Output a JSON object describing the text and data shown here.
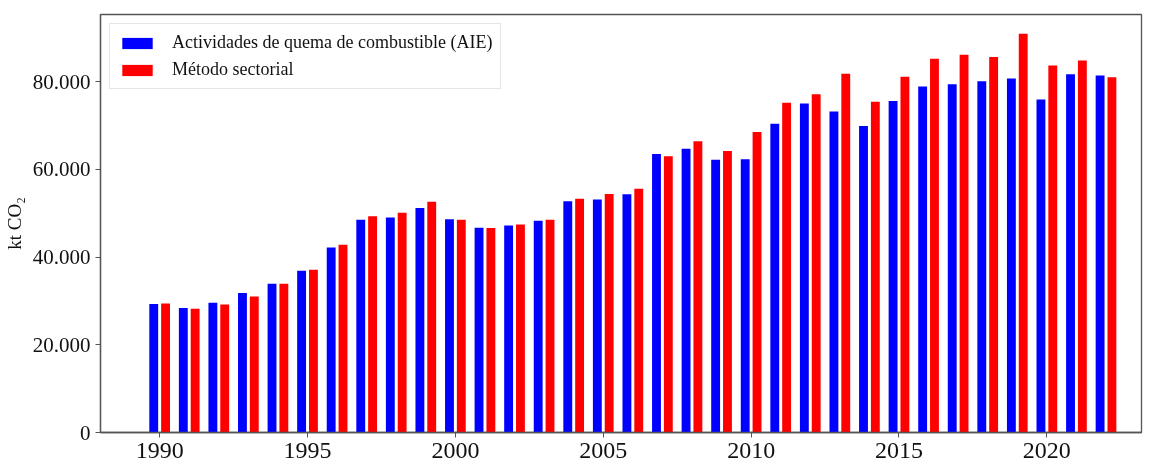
{
  "chart_data": {
    "type": "bar",
    "ylabel": "kt CO₂",
    "x": [
      1990,
      1991,
      1992,
      1993,
      1994,
      1995,
      1996,
      1997,
      1998,
      1999,
      2000,
      2001,
      2002,
      2003,
      2004,
      2005,
      2006,
      2007,
      2008,
      2009,
      2010,
      2011,
      2012,
      2013,
      2014,
      2015,
      2016,
      2017,
      2018,
      2019,
      2020,
      2021,
      2022
    ],
    "series": [
      {
        "name": "Actividades de quema de combustible (AIE)",
        "color": "#0000ff",
        "values": [
          29300,
          28400,
          29600,
          31800,
          33900,
          36900,
          42200,
          48500,
          49000,
          51200,
          48600,
          46700,
          47200,
          48300,
          52700,
          53100,
          54300,
          63500,
          64700,
          62200,
          62300,
          70400,
          75000,
          73200,
          69900,
          75600,
          78900,
          79400,
          80100,
          80700,
          75900,
          81700,
          81400
        ]
      },
      {
        "name": "Método sectorial",
        "color": "#ff0000",
        "values": [
          29400,
          28200,
          29200,
          31000,
          33900,
          37100,
          42800,
          49300,
          50100,
          52600,
          48500,
          46600,
          47400,
          48500,
          53300,
          54400,
          55600,
          63000,
          66400,
          64200,
          68500,
          75200,
          77100,
          81800,
          75400,
          81100,
          85200,
          86100,
          85600,
          90900,
          83700,
          84800,
          81000
        ]
      }
    ],
    "xlim": [
      1988,
      2023.2
    ],
    "xticks": [
      1990,
      1995,
      2000,
      2005,
      2010,
      2015,
      2020
    ],
    "ylim": [
      0,
      95300
    ],
    "yticks": [
      0,
      {
        "value": 20000,
        "label": "20.000"
      },
      {
        "value": 40000,
        "label": "40.000"
      },
      {
        "value": 60000,
        "label": "60.000"
      },
      {
        "value": 80000,
        "label": "80.000"
      }
    ],
    "grid": false,
    "legend": "top left"
  }
}
